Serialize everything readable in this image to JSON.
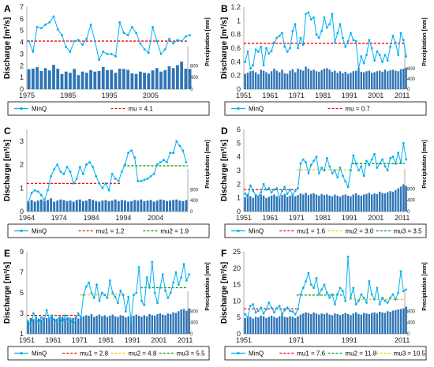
{
  "figure": {
    "discharge_label": "Discharge [m³/s]",
    "precip_label": "Precipitation [mm]"
  },
  "chart_data": [
    {
      "panel": "A",
      "type": "line",
      "xlabel": "",
      "ylabel": "Discharge [m³/s]",
      "y2label": "Precipitation [mm]",
      "x_start": 1975,
      "x_end": 2014,
      "x_ticks": [
        1975,
        1985,
        1995,
        2005
      ],
      "ylim": [
        0,
        7
      ],
      "y_ticks": [
        0,
        1,
        2,
        3,
        4,
        5,
        6,
        7
      ],
      "y2_ticks": [
        400,
        800
      ],
      "y2_max": 2800,
      "series": [
        {
          "name": "MinQ",
          "kind": "line",
          "values": [
            4.1,
            3.2,
            5.3,
            5.2,
            5.5,
            5.7,
            6.2,
            5.1,
            4.6,
            3.6,
            3.2,
            4.1,
            4.2,
            3.8,
            4.3,
            5.5,
            4.1,
            2.5,
            3.2,
            3.0,
            3.0,
            2.8,
            5.7,
            4.8,
            4.6,
            5.3,
            4.8,
            3.9,
            3.4,
            3.1,
            5.3,
            4.1,
            3.0,
            3.4,
            4.3,
            3.9,
            4.2,
            4.1,
            4.5,
            4.6
          ]
        },
        {
          "name": "Precipitation",
          "kind": "bar",
          "axis": "right",
          "values": [
            680,
            700,
            750,
            620,
            720,
            640,
            830,
            700,
            520,
            600,
            560,
            690,
            480,
            600,
            560,
            650,
            600,
            620,
            760,
            650,
            660,
            560,
            700,
            690,
            660,
            540,
            520,
            600,
            560,
            540,
            640,
            720,
            600,
            650,
            780,
            720,
            820,
            940,
            700,
            690
          ]
        }
      ],
      "mean_lines": [
        {
          "name": "mu = 4.1",
          "value": 4.1,
          "x_from": 1975,
          "x_to": 2014,
          "color": "#ff0000"
        }
      ],
      "legend": [
        "MinQ",
        "mu = 4.1"
      ]
    },
    {
      "panel": "B",
      "type": "line",
      "xlabel": "",
      "ylabel": "Discharge [m³/s]",
      "y2label": "Precipitation [mm]",
      "x_start": 1951,
      "x_end": 2012,
      "x_ticks": [
        1951,
        1961,
        1971,
        1981,
        1991,
        2001,
        2011
      ],
      "ylim": [
        0,
        1.2
      ],
      "y_ticks": [
        0,
        0.2,
        0.4,
        0.6,
        0.8,
        1,
        1.2
      ],
      "y2_ticks": [
        400,
        800
      ],
      "y2_max": 3200,
      "series": [
        {
          "name": "MinQ",
          "kind": "line",
          "values": [
            0.4,
            0.55,
            0.3,
            0.35,
            0.58,
            0.55,
            0.62,
            0.35,
            0.6,
            0.52,
            0.56,
            0.68,
            0.75,
            0.78,
            0.82,
            0.62,
            0.55,
            0.6,
            0.85,
            0.95,
            0.6,
            0.75,
            0.65,
            1.1,
            1.12,
            1.02,
            1.05,
            0.8,
            0.75,
            0.85,
            1.05,
            0.9,
            0.95,
            1.1,
            0.68,
            0.82,
            0.95,
            0.75,
            0.62,
            0.7,
            0.82,
            0.72,
            0.7,
            0.3,
            0.48,
            0.38,
            0.5,
            0.72,
            0.6,
            0.42,
            0.55,
            0.5,
            0.4,
            0.5,
            0.42,
            0.62,
            0.78,
            0.68,
            0.5,
            0.82,
            0.72,
            0.48
          ]
        },
        {
          "name": "Precipitation",
          "kind": "bar",
          "axis": "right",
          "values": [
            600,
            640,
            700,
            720,
            660,
            580,
            760,
            720,
            660,
            600,
            700,
            800,
            720,
            660,
            760,
            620,
            600,
            720,
            780,
            660,
            800,
            760,
            720,
            880,
            800,
            720,
            760,
            700,
            680,
            740,
            800,
            820,
            760,
            680,
            720,
            640,
            700,
            620,
            680,
            600,
            640,
            700,
            720,
            760,
            680,
            660,
            700,
            720,
            640,
            660,
            700,
            720,
            680,
            760,
            700,
            740,
            760,
            720,
            700,
            780,
            800,
            840
          ]
        }
      ],
      "mean_lines": [
        {
          "name": "mu = 0.7",
          "value": 0.67,
          "x_from": 1951,
          "x_to": 2012,
          "color": "#ff0000"
        }
      ],
      "legend": [
        "MinQ",
        "mu = 0.7"
      ]
    },
    {
      "panel": "C",
      "type": "line",
      "xlabel": "",
      "ylabel": "Discharge [m³/s]",
      "y2label": "Precipitation [mm]",
      "x_start": 1964,
      "x_end": 2014,
      "x_ticks": [
        1964,
        1974,
        1984,
        1994,
        2004
      ],
      "ylim": [
        0,
        3.5
      ],
      "y_ticks": [
        0,
        1,
        2,
        3
      ],
      "y2_ticks": [
        400,
        800
      ],
      "y2_max": 3000,
      "series": [
        {
          "name": "MinQ",
          "kind": "line",
          "values": [
            0.4,
            0.8,
            0.9,
            0.85,
            0.7,
            0.5,
            0.9,
            1.5,
            1.8,
            2.0,
            1.7,
            1.6,
            1.9,
            1.7,
            1.2,
            1.4,
            1.9,
            1.6,
            2.0,
            2.1,
            1.9,
            1.5,
            1.2,
            1.0,
            1.2,
            0.9,
            1.6,
            1.4,
            1.3,
            1.7,
            2.0,
            2.5,
            2.6,
            2.3,
            1.3,
            1.3,
            1.35,
            1.4,
            1.5,
            1.6,
            2.0,
            2.1,
            2.2,
            2.1,
            2.5,
            2.5,
            3.0,
            2.8,
            2.6,
            2.1
          ]
        },
        {
          "name": "Precipitation",
          "kind": "bar",
          "axis": "right",
          "values": [
            380,
            420,
            360,
            400,
            440,
            380,
            420,
            480,
            360,
            400,
            440,
            420,
            380,
            400,
            360,
            420,
            440,
            380,
            400,
            460,
            420,
            380,
            360,
            400,
            420,
            380,
            400,
            440,
            380,
            420,
            400,
            360,
            380,
            420,
            400,
            440,
            380,
            400,
            420,
            360,
            400,
            440,
            420,
            380,
            400,
            420,
            440,
            400,
            380,
            420
          ]
        }
      ],
      "mean_lines": [
        {
          "name": "mu1 = 1.2",
          "value": 1.2,
          "x_from": 1964,
          "x_to": 1993,
          "color": "#ff0000"
        },
        {
          "name": "mu2 = 1.9",
          "value": 1.95,
          "x_from": 1994,
          "x_to": 2014,
          "color": "#00a000"
        }
      ],
      "legend": [
        "MinQ",
        "mu1 = 1.2",
        "mu2 = 1.9"
      ]
    },
    {
      "panel": "D",
      "type": "line",
      "xlabel": "",
      "ylabel": "Discharge [m³/s]",
      "y2label": "Precipitation [mm]",
      "x_start": 1951,
      "x_end": 2012,
      "x_ticks": [
        1951,
        1961,
        1971,
        1981,
        1991,
        2001,
        2011
      ],
      "ylim": [
        0,
        6
      ],
      "y_ticks": [
        0,
        1,
        2,
        3,
        4,
        5,
        6
      ],
      "y2_ticks": [
        400,
        800
      ],
      "y2_max": 2900,
      "series": [
        {
          "name": "MinQ",
          "kind": "line",
          "values": [
            1.3,
            1.0,
            1.9,
            1.5,
            1.2,
            1.1,
            1.4,
            2.0,
            1.6,
            1.7,
            1.4,
            1.6,
            1.7,
            1.0,
            1.5,
            1.8,
            1.3,
            1.6,
            1.2,
            1.5,
            1.7,
            3.5,
            3.8,
            3.6,
            2.8,
            3.4,
            3.7,
            4.0,
            2.8,
            3.2,
            3.0,
            3.9,
            3.3,
            2.8,
            3.0,
            2.5,
            3.2,
            2.6,
            2.2,
            1.8,
            3.0,
            4.1,
            3.5,
            3.0,
            3.3,
            2.6,
            3.7,
            3.4,
            3.8,
            4.2,
            3.2,
            3.5,
            3.8,
            3.3,
            3.0,
            3.9,
            4.0,
            3.5,
            4.3,
            3.6,
            5.0,
            3.8
          ]
        },
        {
          "name": "Precipitation",
          "kind": "bar",
          "axis": "right",
          "values": [
            500,
            620,
            540,
            480,
            560,
            520,
            600,
            560,
            480,
            520,
            560,
            600,
            540,
            500,
            580,
            620,
            520,
            560,
            600,
            540,
            580,
            640,
            600,
            660,
            580,
            620,
            640,
            600,
            560,
            620,
            580,
            600,
            560,
            540,
            600,
            560,
            520,
            580,
            600,
            560,
            540,
            600,
            640,
            580,
            560,
            600,
            620,
            660,
            600,
            640,
            620,
            700,
            660,
            640,
            680,
            720,
            700,
            760,
            820,
            880,
            960,
            900
          ]
        }
      ],
      "mean_lines": [
        {
          "name": "mu1 = 1.6",
          "value": 1.6,
          "x_from": 1951,
          "x_to": 1971,
          "color": "#ff0000"
        },
        {
          "name": "mu2 = 3.0",
          "value": 3.05,
          "x_from": 1971,
          "x_to": 1992,
          "color": "#ffc000"
        },
        {
          "name": "mu3 = 3.5",
          "value": 3.5,
          "x_from": 1992,
          "x_to": 2012,
          "color": "#00a000"
        }
      ],
      "legend": [
        "MinQ",
        "mu1 = 1.6",
        "mu2 = 3.0",
        "mu3 = 3.5"
      ]
    },
    {
      "panel": "E",
      "type": "line",
      "xlabel": "",
      "ylabel": "Discharge [m³/s]",
      "y2label": "Precipitation [mm]",
      "x_start": 1951,
      "x_end": 2012,
      "x_ticks": [
        1951,
        1961,
        1971,
        1981,
        1991,
        2001,
        2011
      ],
      "ylim": [
        1,
        9
      ],
      "y_ticks": [
        1,
        3,
        5,
        7,
        9
      ],
      "y2_ticks": [
        400,
        800
      ],
      "y2_max": 2900,
      "series": [
        {
          "name": "MinQ",
          "kind": "line",
          "values": [
            2.2,
            1.8,
            3.0,
            2.5,
            2.0,
            2.6,
            2.2,
            3.3,
            2.5,
            2.8,
            2.1,
            2.4,
            2.6,
            2.0,
            2.8,
            2.2,
            2.5,
            1.9,
            2.3,
            3.0,
            2.6,
            4.8,
            5.6,
            6.0,
            5.0,
            4.5,
            5.8,
            4.2,
            5.0,
            4.8,
            4.5,
            6.2,
            5.0,
            4.6,
            4.0,
            5.2,
            4.8,
            3.2,
            4.6,
            2.2,
            4.8,
            5.0,
            7.5,
            4.2,
            3.8,
            6.5,
            5.5,
            8.0,
            5.0,
            4.0,
            5.5,
            6.8,
            5.2,
            4.5,
            5.0,
            6.0,
            7.0,
            5.8,
            6.5,
            7.8,
            6.2,
            6.8
          ]
        },
        {
          "name": "Precipitation",
          "kind": "bar",
          "axis": "right",
          "values": [
            480,
            560,
            520,
            600,
            540,
            500,
            580,
            560,
            520,
            600,
            540,
            520,
            560,
            600,
            540,
            580,
            520,
            560,
            600,
            540,
            600,
            620,
            660,
            640,
            700,
            600,
            640,
            680,
            620,
            660,
            600,
            640,
            680,
            620,
            600,
            660,
            640,
            580,
            620,
            600,
            640,
            680,
            640,
            600,
            660,
            620,
            700,
            660,
            640,
            700,
            720,
            680,
            660,
            720,
            700,
            760,
            740,
            800,
            860,
            880,
            820,
            900
          ]
        }
      ],
      "mean_lines": [
        {
          "name": "mu1 = 2.8",
          "value": 2.8,
          "x_from": 1951,
          "x_to": 1971,
          "color": "#ff0000"
        },
        {
          "name": "mu2 = 4.8",
          "value": 4.8,
          "x_from": 1971,
          "x_to": 1989,
          "color": "#ffc000"
        },
        {
          "name": "mu3 = 5.5",
          "value": 5.5,
          "x_from": 1994,
          "x_to": 2012,
          "color": "#00a000"
        }
      ],
      "legend": [
        "MinQ",
        "mu1 = 2.8",
        "mu2 = 4.8",
        "mu3 = 5.5"
      ]
    },
    {
      "panel": "F",
      "type": "line",
      "xlabel": "",
      "ylabel": "Discharge [m³/s]",
      "y2label": "Precipitation [mm]",
      "x_start": 1951,
      "x_end": 2012,
      "x_ticks": [
        1951,
        1971,
        1991,
        2011
      ],
      "ylim": [
        0,
        25
      ],
      "y_ticks": [
        0,
        5,
        10,
        15,
        20,
        25
      ],
      "y2_ticks": [
        400,
        800
      ],
      "y2_max": 2900,
      "series": [
        {
          "name": "MinQ",
          "kind": "line",
          "values": [
            6.0,
            5.0,
            8.5,
            9.0,
            6.5,
            7.0,
            8.0,
            6.2,
            7.5,
            9.5,
            8.0,
            6.5,
            7.8,
            8.5,
            6.0,
            7.2,
            8.0,
            7.0,
            6.8,
            6.0,
            7.5,
            12.0,
            14.0,
            16.0,
            18.5,
            15.0,
            14.0,
            17.0,
            12.0,
            13.5,
            15.0,
            12.5,
            11.0,
            12.0,
            9.0,
            12.0,
            14.0,
            13.0,
            10.0,
            23.5,
            11.0,
            14.0,
            9.0,
            10.0,
            12.0,
            11.0,
            9.5,
            16.0,
            12.0,
            10.5,
            14.0,
            9.0,
            11.0,
            10.0,
            9.5,
            11.0,
            12.0,
            10.5,
            12.5,
            19.0,
            13.0,
            13.5
          ]
        },
        {
          "name": "Precipitation",
          "kind": "bar",
          "axis": "right",
          "values": [
            560,
            620,
            600,
            540,
            600,
            580,
            640,
            620,
            560,
            600,
            640,
            600,
            560,
            620,
            660,
            600,
            580,
            620,
            600,
            560,
            620,
            680,
            720,
            760,
            740,
            700,
            760,
            720,
            680,
            720,
            700,
            740,
            680,
            660,
            720,
            700,
            660,
            700,
            740,
            700,
            660,
            720,
            760,
            700,
            680,
            740,
            720,
            700,
            740,
            760,
            720,
            780,
            760,
            740,
            800,
            780,
            820,
            840,
            860,
            880,
            900,
            960
          ]
        }
      ],
      "mean_lines": [
        {
          "name": "mu1 = 7.6",
          "value": 7.6,
          "x_from": 1951,
          "x_to": 1971,
          "color": "#ff0000"
        },
        {
          "name": "mu2 = 11.8",
          "value": 11.8,
          "x_from": 1971,
          "x_to": 1989,
          "color": "#00a000"
        },
        {
          "name": "mu3 = 10.5",
          "value": 10.5,
          "x_from": 1991,
          "x_to": 2012,
          "color": "#ffc000"
        }
      ],
      "legend": [
        "MinQ",
        "mu1 = 7.6",
        "mu2 = 11.8",
        "mu3 = 10.5"
      ]
    }
  ]
}
